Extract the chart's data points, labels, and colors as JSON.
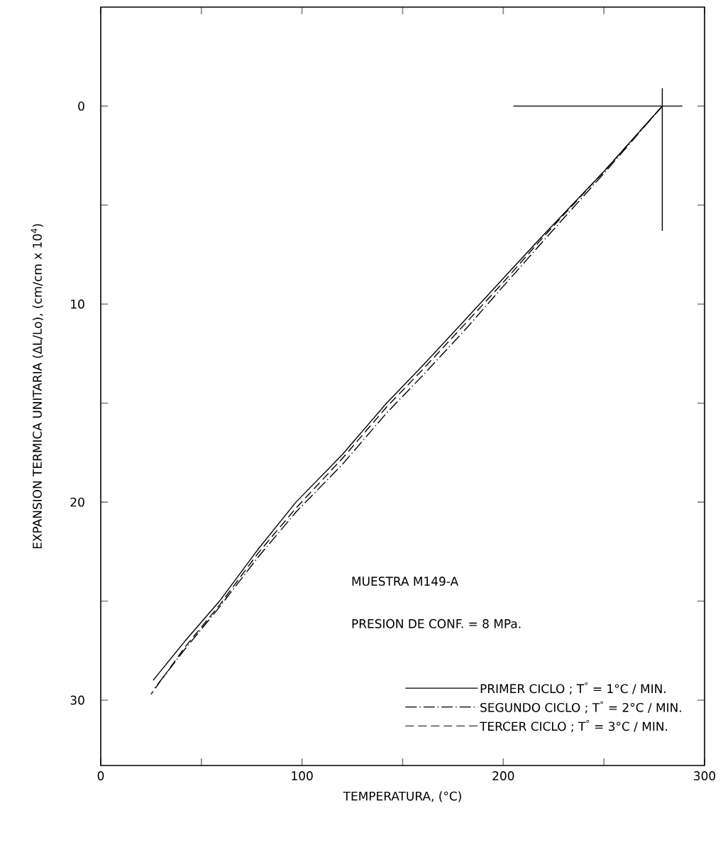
{
  "chart_data": {
    "type": "line",
    "xlabel": "TEMPERATURA, (°C)",
    "ylabel": "EXPANSION TERMICA UNITARIA (ΔL/Lo), (cm/cm x 10$^{4}$)",
    "xlim": [
      0,
      300
    ],
    "ylim": [
      33.3,
      -5
    ],
    "xticks": [
      0,
      {
        "value": 50,
        "label": null
      },
      100,
      {
        "value": 150,
        "label": null
      },
      200,
      {
        "value": 250,
        "label": null
      },
      300
    ],
    "yticks": [
      0,
      {
        "value": 5,
        "label": null
      },
      10,
      {
        "value": 15,
        "label": null
      },
      20,
      {
        "value": 25,
        "label": null
      },
      30
    ],
    "grid": false,
    "legend": "bottom right",
    "marker": "none",
    "annotations": [
      "MUESTRA  M149-A",
      "PRESION  DE  CONF. = 8 MPa."
    ],
    "series": [
      {
        "name": "PRIMER CICLO ;   T$^{°}$ = 1°C / MIN.",
        "color": "#000000",
        "line_style": "solid",
        "x": [
          279,
          250,
          220,
          200,
          181,
          160,
          142,
          120,
          97,
          78,
          59,
          42,
          26
        ],
        "values": [
          0,
          3.3,
          6.5,
          8.7,
          10.8,
          13.1,
          15,
          17.6,
          20,
          22.4,
          25,
          27,
          29
        ]
      },
      {
        "name": "SEGUNDO CICLO ;   T$^{°}$ = 2°C / MIN.",
        "color": "#000000",
        "line_style": "dashdot",
        "x": [
          279,
          250,
          220,
          200,
          181,
          160,
          142,
          120,
          97,
          78,
          59,
          42,
          26
        ],
        "values": [
          0,
          3.4,
          6.8,
          9.1,
          11.3,
          13.6,
          15.5,
          18.1,
          20.5,
          22.8,
          25.3,
          27.4,
          29.5
        ]
      },
      {
        "name": "TERCER CICLO ;   T$^{°}$ = 3°C / MIN.",
        "color": "#000000",
        "line_style": "dashed",
        "x": [
          279,
          250,
          220,
          200,
          181,
          160,
          142,
          120,
          97,
          78,
          59,
          42,
          25
        ],
        "values": [
          0,
          3.3,
          6.6,
          8.9,
          11.0,
          13.3,
          15.2,
          17.8,
          20.3,
          22.6,
          25.2,
          27.3,
          29.7
        ]
      },
      {
        "color": "#000000",
        "line_style": "solid",
        "x": [
          205,
          289
        ],
        "values": [
          0,
          0
        ]
      },
      {
        "color": "#000000",
        "line_style": "solid",
        "x": [
          279,
          279
        ],
        "values": [
          -0.9,
          6.3
        ]
      }
    ]
  }
}
